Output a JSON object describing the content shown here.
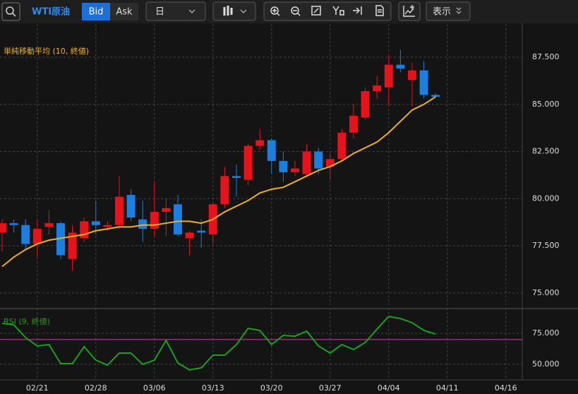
{
  "toolbar": {
    "symbol": "WTI原油",
    "bid": "Bid",
    "ask": "Ask",
    "period": "日",
    "view": "表示"
  },
  "chart_data": [
    {
      "type": "candlestick",
      "categories": [
        null,
        null,
        null,
        null,
        null,
        null,
        null,
        null,
        null,
        null,
        null,
        null,
        null,
        null,
        null,
        null,
        null,
        null,
        null,
        null,
        null,
        null,
        null,
        null,
        null,
        null,
        null,
        null,
        null,
        null,
        null,
        null,
        null,
        null,
        null,
        null,
        null,
        null
      ],
      "series": [
        {
          "up_color": "#e8121a",
          "down_color": "#1a7fe0",
          "open": [
            78.2,
            78.7,
            78.6,
            77.6,
            78.5,
            78.7,
            76.8,
            77.9,
            78.8,
            78.5,
            78.6,
            80.2,
            78.9,
            78.4,
            79.3,
            79.7,
            77.9,
            78.3,
            78.1,
            79.7,
            81.2,
            81.0,
            82.8,
            83.1,
            82.0,
            81.4,
            81.3,
            82.5,
            81.7,
            82.1,
            83.5,
            84.3,
            85.7,
            85.9,
            87.1,
            86.3,
            86.8,
            85.5
          ],
          "high": [
            78.9,
            78.9,
            78.9,
            78.9,
            79.4,
            78.8,
            78.6,
            79.0,
            79.9,
            78.8,
            81.2,
            80.5,
            79.9,
            80.9,
            80.0,
            80.2,
            78.3,
            78.9,
            79.8,
            81.7,
            81.8,
            82.9,
            83.7,
            83.2,
            82.5,
            82.0,
            82.9,
            82.7,
            82.4,
            83.7,
            85.0,
            85.9,
            86.5,
            87.6,
            87.9,
            87.2,
            87.3,
            85.6
          ],
          "low": [
            77.2,
            78.2,
            77.3,
            76.9,
            78.1,
            76.8,
            76.2,
            77.7,
            78.1,
            78.3,
            78.4,
            78.8,
            77.7,
            78.0,
            78.0,
            78.0,
            77.0,
            77.4,
            77.6,
            79.5,
            80.1,
            80.7,
            82.6,
            81.3,
            80.9,
            81.2,
            81.2,
            81.3,
            81.0,
            82.0,
            83.2,
            84.2,
            85.3,
            84.9,
            86.7,
            84.9,
            85.3,
            85.4
          ],
          "close": [
            78.7,
            78.6,
            77.6,
            78.4,
            78.7,
            77.0,
            78.2,
            78.8,
            78.6,
            78.6,
            80.1,
            79.0,
            78.4,
            79.3,
            79.5,
            78.1,
            78.2,
            78.2,
            79.7,
            81.2,
            81.1,
            82.8,
            83.1,
            82.0,
            81.4,
            81.6,
            82.5,
            81.6,
            82.1,
            83.5,
            84.4,
            85.7,
            86.0,
            87.1,
            86.9,
            86.8,
            85.5,
            85.4
          ]
        }
      ],
      "overlays": [
        {
          "name": "単純移動平均 (10, 終値)",
          "color": "#f0b020",
          "values": [
            76.4,
            76.9,
            77.3,
            77.6,
            77.8,
            77.9,
            78.0,
            78.1,
            78.3,
            78.4,
            78.5,
            78.5,
            78.6,
            78.6,
            78.7,
            78.8,
            78.8,
            78.7,
            78.9,
            79.3,
            79.6,
            79.9,
            80.3,
            80.5,
            80.6,
            80.9,
            81.2,
            81.5,
            81.7,
            82.0,
            82.4,
            82.7,
            83.0,
            83.5,
            84.1,
            84.7,
            85.0,
            85.4
          ]
        }
      ],
      "xlim": [
        -0.18,
        44.4
      ],
      "xticks": [
        {
          "value": 3,
          "label": "02/21"
        },
        {
          "value": 8,
          "label": "02/28"
        },
        {
          "value": 13,
          "label": "03/06"
        },
        {
          "value": 18,
          "label": "03/13"
        },
        {
          "value": 23,
          "label": "03/20"
        },
        {
          "value": 28,
          "label": "03/27"
        },
        {
          "value": 33,
          "label": "04/04"
        },
        {
          "value": 38,
          "label": "04/11"
        },
        {
          "value": 43,
          "label": "04/16"
        }
      ],
      "ylim": [
        74.36,
        89.11
      ],
      "yticks": [
        {
          "value": 75,
          "label": "75.000"
        },
        {
          "value": 77.5,
          "label": "77.500"
        },
        {
          "value": 80,
          "label": "80.000"
        },
        {
          "value": 82.5,
          "label": "82.500"
        },
        {
          "value": 85,
          "label": "85.000"
        },
        {
          "value": 87.5,
          "label": "87.500"
        }
      ],
      "grid": true
    },
    {
      "type": "line",
      "series": [
        {
          "name": "RSI (9, 終値)",
          "color": "#1aa01a",
          "values": [
            83.0,
            81.8,
            71.6,
            64.8,
            65.9,
            50.6,
            50.6,
            64.2,
            53.4,
            49.4,
            59.1,
            59.1,
            50.0,
            53.4,
            69.3,
            51.1,
            45.5,
            47.2,
            57.4,
            57.4,
            65.9,
            79.0,
            77.3,
            65.9,
            73.3,
            72.7,
            76.7,
            64.8,
            59.1,
            65.9,
            61.9,
            67.6,
            78.4,
            88.6,
            86.9,
            83.5,
            77.3,
            74.4
          ]
        }
      ],
      "reference_lines": [
        {
          "value": 70,
          "color": "#d040b0"
        }
      ],
      "ylim": [
        39.2,
        93.2
      ],
      "yticks": [
        {
          "value": 50,
          "label": "50.000"
        },
        {
          "value": 75,
          "label": "75.000"
        }
      ],
      "grid": true
    }
  ]
}
